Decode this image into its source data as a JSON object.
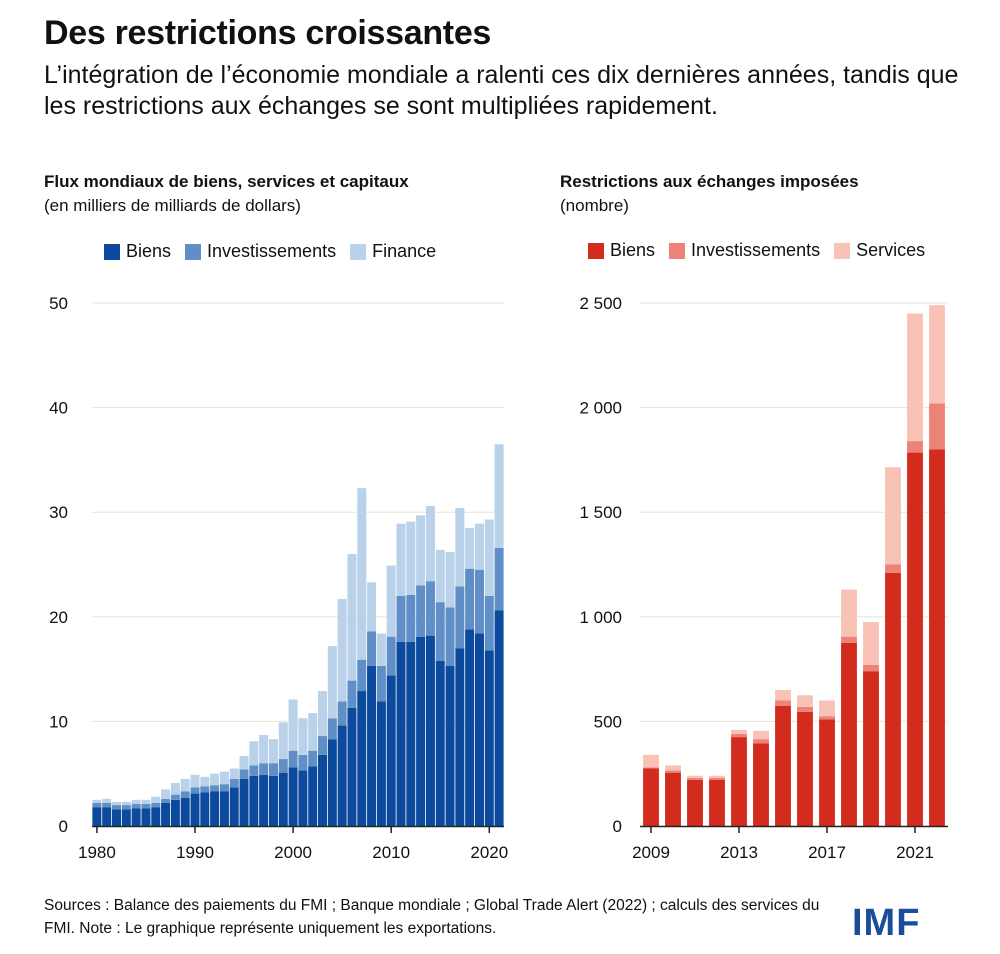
{
  "title": "Des restrictions croissantes",
  "subtitle": "L’intégration de l’économie mondiale a ralenti ces dix dernières années, tandis que les restrictions aux échanges se sont multipliées rapidement.",
  "left_panel": {
    "title": "Flux mondiaux de biens, services et capitaux",
    "unit": "(en milliers de milliards de dollars)"
  },
  "right_panel": {
    "title": "Restrictions aux échanges imposées",
    "unit": "(nombre)"
  },
  "source": "Sources : Balance des paiements du FMI ; Banque mondiale ; Global Trade Alert (2022) ; calculs des services du FMI. Note : Le graphique représente uniquement les exportations.",
  "logo": "IMF",
  "colors": {
    "left": [
      "#0b4a9c",
      "#5f8fc6",
      "#b9d2ea"
    ],
    "right": [
      "#d42b1f",
      "#ec8378",
      "#f8c3b6"
    ],
    "grid": "#e5e5d5",
    "axis": "#222222"
  },
  "chart_data": [
    {
      "type": "bar",
      "stacked": true,
      "x": [
        1980,
        1981,
        1982,
        1983,
        1984,
        1985,
        1986,
        1987,
        1988,
        1989,
        1990,
        1991,
        1992,
        1993,
        1994,
        1995,
        1996,
        1997,
        1998,
        1999,
        2000,
        2001,
        2002,
        2003,
        2004,
        2005,
        2006,
        2007,
        2008,
        2009,
        2010,
        2011,
        2012,
        2013,
        2014,
        2015,
        2016,
        2017,
        2018,
        2019,
        2020,
        2021
      ],
      "series": [
        {
          "name": "Biens",
          "values": [
            1.8,
            1.8,
            1.6,
            1.6,
            1.7,
            1.7,
            1.8,
            2.2,
            2.5,
            2.7,
            3.1,
            3.2,
            3.3,
            3.3,
            3.7,
            4.5,
            4.8,
            4.9,
            4.8,
            5.1,
            5.6,
            5.3,
            5.7,
            6.8,
            8.3,
            9.6,
            11.3,
            12.9,
            15.3,
            11.9,
            14.4,
            17.6,
            17.6,
            18.1,
            18.2,
            15.8,
            15.3,
            17.0,
            18.8,
            18.4,
            16.8,
            20.6
          ]
        },
        {
          "name": "Investissements",
          "values": [
            0.4,
            0.4,
            0.4,
            0.4,
            0.4,
            0.4,
            0.4,
            0.4,
            0.5,
            0.6,
            0.6,
            0.6,
            0.6,
            0.7,
            0.8,
            0.9,
            1.0,
            1.1,
            1.2,
            1.3,
            1.6,
            1.5,
            1.5,
            1.8,
            2.0,
            2.3,
            2.6,
            3.0,
            3.3,
            3.4,
            3.7,
            4.4,
            4.5,
            4.9,
            5.2,
            5.6,
            5.6,
            5.9,
            5.8,
            6.1,
            5.2,
            6.0
          ]
        },
        {
          "name": "Finance",
          "values": [
            0.3,
            0.4,
            0.3,
            0.3,
            0.4,
            0.4,
            0.6,
            0.9,
            1.1,
            1.2,
            1.2,
            0.9,
            1.1,
            1.2,
            1.0,
            1.3,
            2.3,
            2.7,
            2.3,
            3.5,
            4.9,
            3.5,
            3.6,
            4.3,
            6.9,
            9.8,
            12.1,
            16.4,
            4.7,
            3.1,
            6.8,
            6.9,
            7.0,
            6.7,
            7.2,
            5.0,
            5.3,
            7.5,
            3.9,
            4.4,
            7.3,
            9.9
          ]
        }
      ],
      "xticks": [
        1980,
        1990,
        2000,
        2010,
        2020
      ],
      "yticks": [
        0,
        10,
        20,
        30,
        40,
        50
      ],
      "ylim": [
        0,
        50
      ],
      "xlabel": "",
      "ylabel": ""
    },
    {
      "type": "bar",
      "stacked": true,
      "x": [
        2009,
        2010,
        2011,
        2012,
        2013,
        2014,
        2015,
        2016,
        2017,
        2018,
        2019,
        2020,
        2021,
        2022
      ],
      "series": [
        {
          "name": "Biens",
          "values": [
            275,
            255,
            220,
            220,
            425,
            395,
            575,
            545,
            510,
            875,
            740,
            1210,
            1785,
            1800
          ]
        },
        {
          "name": "Investissements",
          "values": [
            5,
            10,
            10,
            10,
            15,
            20,
            25,
            25,
            15,
            30,
            30,
            40,
            55,
            220
          ]
        },
        {
          "name": "Services",
          "values": [
            60,
            25,
            10,
            10,
            20,
            40,
            50,
            55,
            75,
            225,
            205,
            465,
            610,
            470
          ]
        }
      ],
      "xticks": [
        "2009",
        "2013",
        "2017",
        "2021"
      ],
      "yticks": [
        "0",
        "500",
        "1 000",
        "1 500",
        "2 000",
        "2 500"
      ],
      "ylim": [
        0,
        2500
      ],
      "xlabel": "",
      "ylabel": ""
    }
  ]
}
